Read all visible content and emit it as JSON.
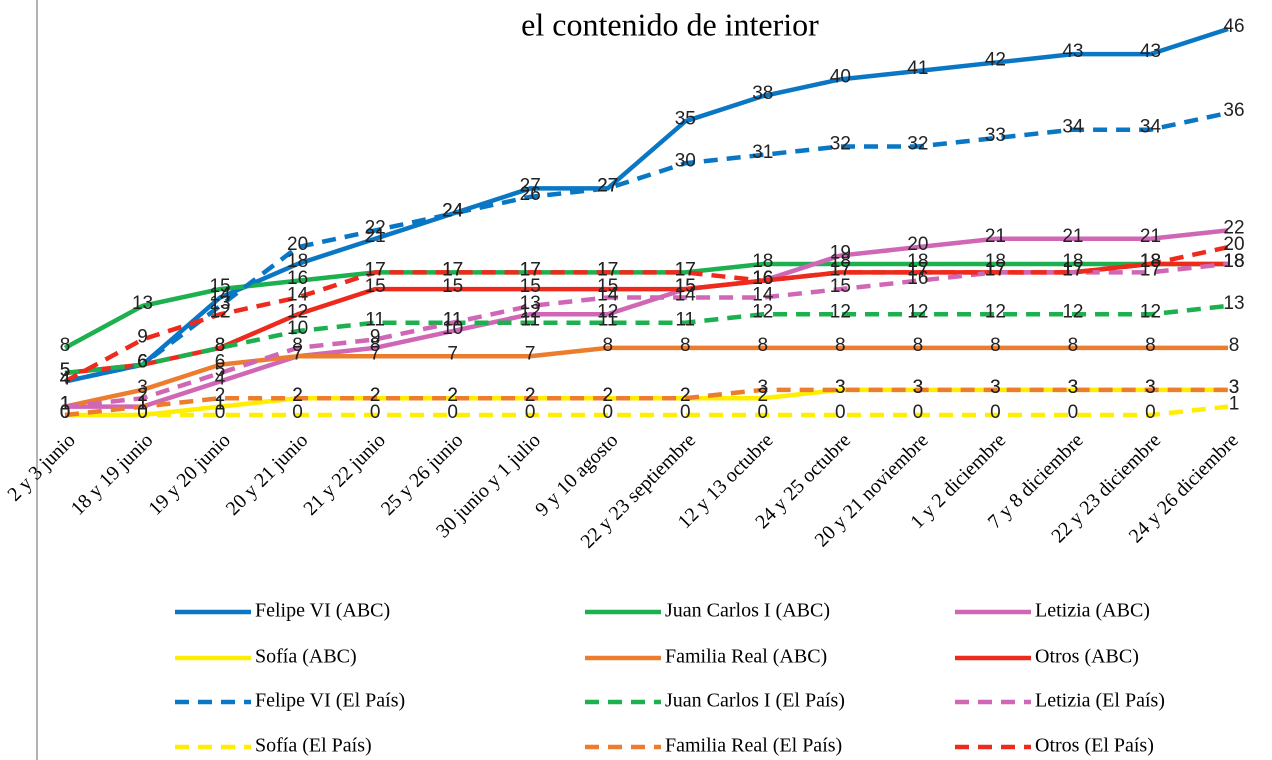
{
  "chart_data": {
    "type": "line",
    "title": "el contenido de interior",
    "categories": [
      "2 y 3 junio",
      "18 y 19 junio",
      "19 y 20 junio",
      "20 y 21 junio",
      "21 y 22 junio",
      "25 y 26 junio",
      "30 junio y 1 julio",
      "9 y 10 agosto",
      "22 y 23 septiembre",
      "12 y 13 octubre",
      "24 y 25 octubre",
      "20 y 21 noviembre",
      "1 y 2 diciembre",
      "7 y 8 diciembre",
      "22 y 23 diciembre",
      "24 y 26 diciembre"
    ],
    "series": [
      {
        "name": "Felipe VI (ABC)",
        "color": "#0a77c4",
        "dashed": false,
        "values": [
          4,
          6,
          14,
          18,
          21,
          24,
          27,
          27,
          35,
          38,
          40,
          41,
          42,
          43,
          43,
          46
        ]
      },
      {
        "name": "Juan Carlos I (ABC)",
        "color": "#1cb04e",
        "dashed": false,
        "values": [
          8,
          13,
          15,
          16,
          17,
          17,
          17,
          17,
          17,
          18,
          18,
          18,
          18,
          18,
          18,
          18
        ]
      },
      {
        "name": "Letizia (ABC)",
        "color": "#d067b6",
        "dashed": false,
        "values": [
          1,
          1,
          4,
          7,
          8,
          10,
          12,
          12,
          15,
          16,
          19,
          20,
          21,
          21,
          21,
          22
        ]
      },
      {
        "name": "Sofía (ABC)",
        "color": "#ffee00",
        "dashed": false,
        "values": [
          0,
          0,
          1,
          2,
          2,
          2,
          2,
          2,
          2,
          2,
          3,
          3,
          3,
          3,
          3,
          3
        ]
      },
      {
        "name": "Familia Real (ABC)",
        "color": "#ec7d2e",
        "dashed": false,
        "values": [
          1,
          3,
          6,
          7,
          7,
          7,
          7,
          8,
          8,
          8,
          8,
          8,
          8,
          8,
          8,
          8
        ]
      },
      {
        "name": "Otros (ABC)",
        "color": "#ee2a1c",
        "dashed": false,
        "values": [
          5,
          6,
          8,
          12,
          15,
          15,
          15,
          15,
          15,
          16,
          17,
          17,
          17,
          17,
          18,
          18
        ]
      },
      {
        "name": "Felipe VI (El País)",
        "color": "#0a77c4",
        "dashed": true,
        "values": [
          4,
          6,
          13,
          20,
          22,
          24,
          26,
          27,
          30,
          31,
          32,
          32,
          33,
          34,
          34,
          36
        ]
      },
      {
        "name": "Juan Carlos I (El País)",
        "color": "#1cb04e",
        "dashed": true,
        "values": [
          5,
          6,
          8,
          10,
          11,
          11,
          11,
          11,
          11,
          12,
          12,
          12,
          12,
          12,
          12,
          13
        ]
      },
      {
        "name": "Letizia (El País)",
        "color": "#d067b6",
        "dashed": true,
        "values": [
          1,
          2,
          5,
          8,
          9,
          11,
          13,
          14,
          14,
          14,
          15,
          16,
          17,
          17,
          17,
          18
        ]
      },
      {
        "name": "Sofía (El País)",
        "color": "#ffee00",
        "dashed": true,
        "values": [
          0,
          0,
          0,
          0,
          0,
          0,
          0,
          0,
          0,
          0,
          0,
          0,
          0,
          0,
          0,
          1
        ]
      },
      {
        "name": "Familia Real (El País)",
        "color": "#ec7d2e",
        "dashed": true,
        "values": [
          0,
          1,
          2,
          2,
          2,
          2,
          2,
          2,
          2,
          3,
          3,
          3,
          3,
          3,
          3,
          3
        ]
      },
      {
        "name": "Otros (El País)",
        "color": "#ee2a1c",
        "dashed": true,
        "values": [
          4,
          9,
          12,
          14,
          17,
          17,
          17,
          17,
          17,
          16,
          17,
          17,
          17,
          17,
          18,
          20
        ]
      }
    ],
    "ylim": [
      0,
      46
    ],
    "legend_columns": 3
  }
}
